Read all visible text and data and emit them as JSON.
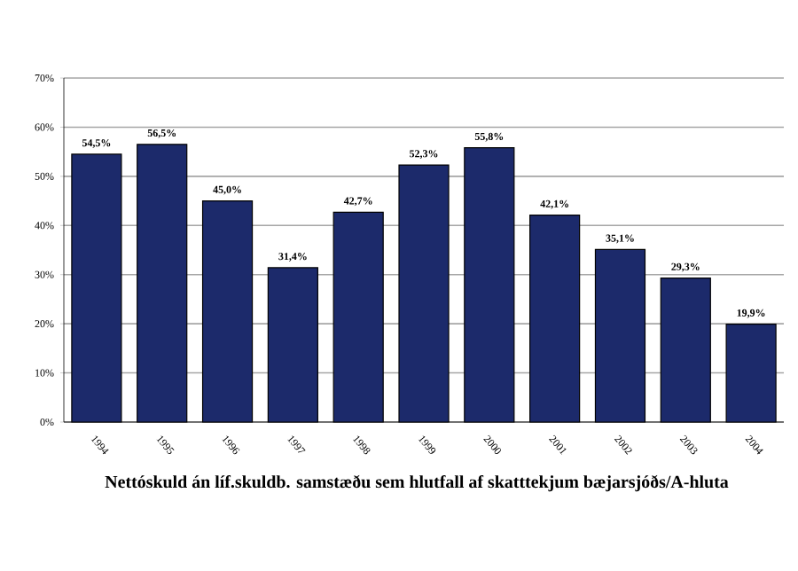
{
  "chart_data": {
    "type": "bar",
    "title": "Nettóskuld án líf.skuldb. samstæðu sem hlutfall af skatttekjum bæjarsjóðs/A-hluta",
    "categories": [
      "1994",
      "1995",
      "1996",
      "1997",
      "1998",
      "1999",
      "2000",
      "2001",
      "2002",
      "2003",
      "2004"
    ],
    "values": [
      54.5,
      56.5,
      45.0,
      31.4,
      42.7,
      52.3,
      55.8,
      42.1,
      35.1,
      29.3,
      19.9
    ],
    "value_labels": [
      "54,5%",
      "56,5%",
      "45,0%",
      "31,4%",
      "42,7%",
      "52,3%",
      "55,8%",
      "42,1%",
      "35,1%",
      "29,3%",
      "19,9%"
    ],
    "color": "#1c2a6b",
    "ylim": [
      0,
      70
    ],
    "yticks": [
      {
        "value": 0,
        "label": "0%"
      },
      {
        "value": 10,
        "label": "10%"
      },
      {
        "value": 20,
        "label": "20%"
      },
      {
        "value": 30,
        "label": "30%"
      },
      {
        "value": 40,
        "label": "40%"
      },
      {
        "value": 50,
        "label": "50%"
      },
      {
        "value": 60,
        "label": "60%"
      },
      {
        "value": 70,
        "label": "70%"
      }
    ],
    "grid": "y"
  }
}
